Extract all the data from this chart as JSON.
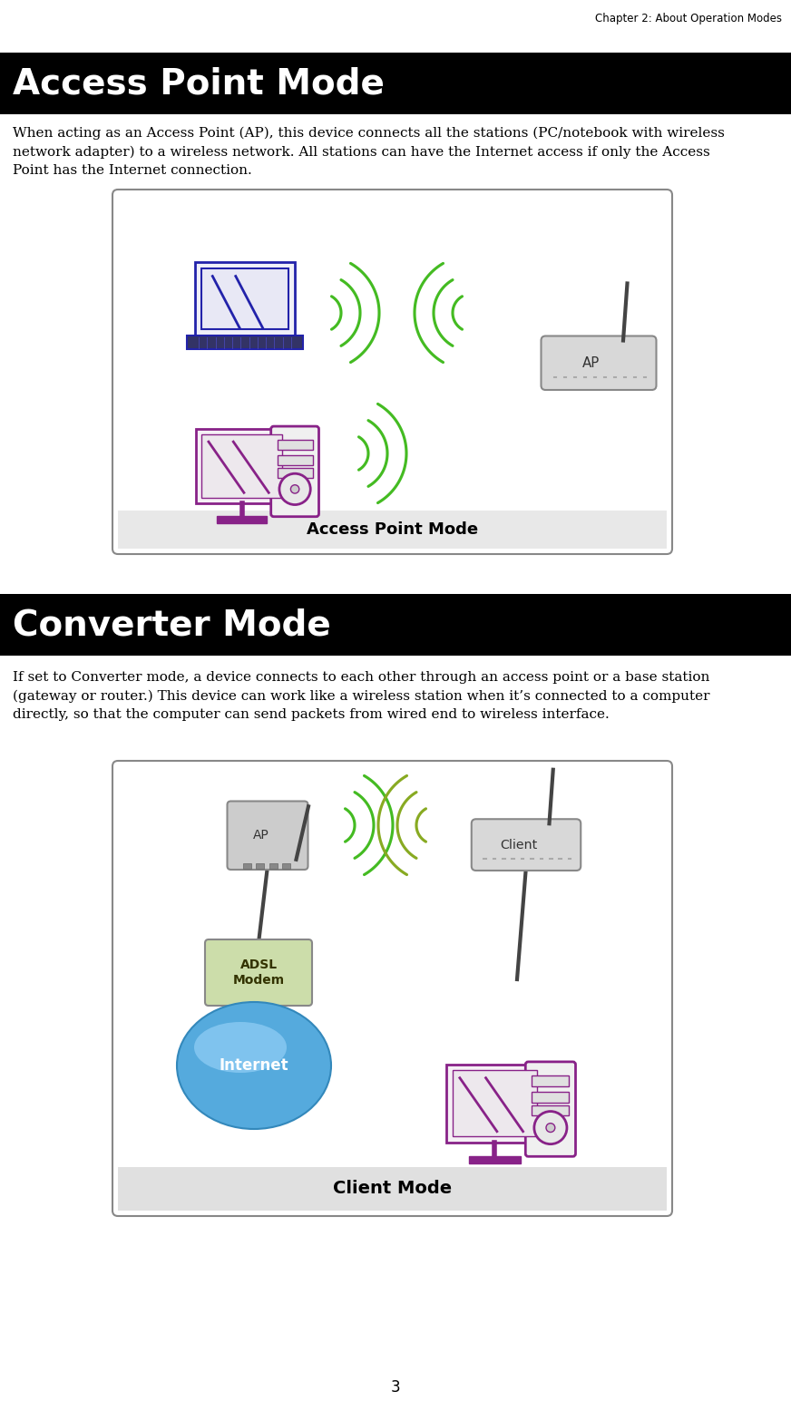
{
  "background_color": "#ffffff",
  "header_text": "Chapter 2: About Operation Modes",
  "header_fontsize": 8.5,
  "section1_title": "Access Point Mode",
  "section1_title_fontsize": 28,
  "section1_title_bg": "#000000",
  "section1_title_color": "#ffffff",
  "section1_body": "When acting as an Access Point (AP), this device connects all the stations (PC/notebook with wireless\nnetwork adapter) to a wireless network. All stations can have the Internet access if only the Access\nPoint has the Internet connection.",
  "section1_body_fontsize": 11,
  "section2_title": "Converter Mode",
  "section2_title_fontsize": 28,
  "section2_title_bg": "#000000",
  "section2_title_color": "#ffffff",
  "section2_body": "If set to Converter mode, a device connects to each other through an access point or a base station\n(gateway or router.) This device can work like a wireless station when it’s connected to a computer\ndirectly, so that the computer can send packets from wired end to wireless interface.",
  "section2_body_fontsize": 11,
  "image1_label": "Access Point Mode",
  "image2_label": "Client Mode",
  "page_number": "3",
  "laptop_color": "#2222aa",
  "desktop_color": "#882288",
  "router_color": "#bbbbbb",
  "wifi_color_green": "#44bb22",
  "wifi_color_olive": "#88aa22",
  "adsl_bg": "#ccddaa",
  "internet_color": "#55aadd",
  "box_edge_color": "#888888",
  "box_face_color": "#ffffff"
}
